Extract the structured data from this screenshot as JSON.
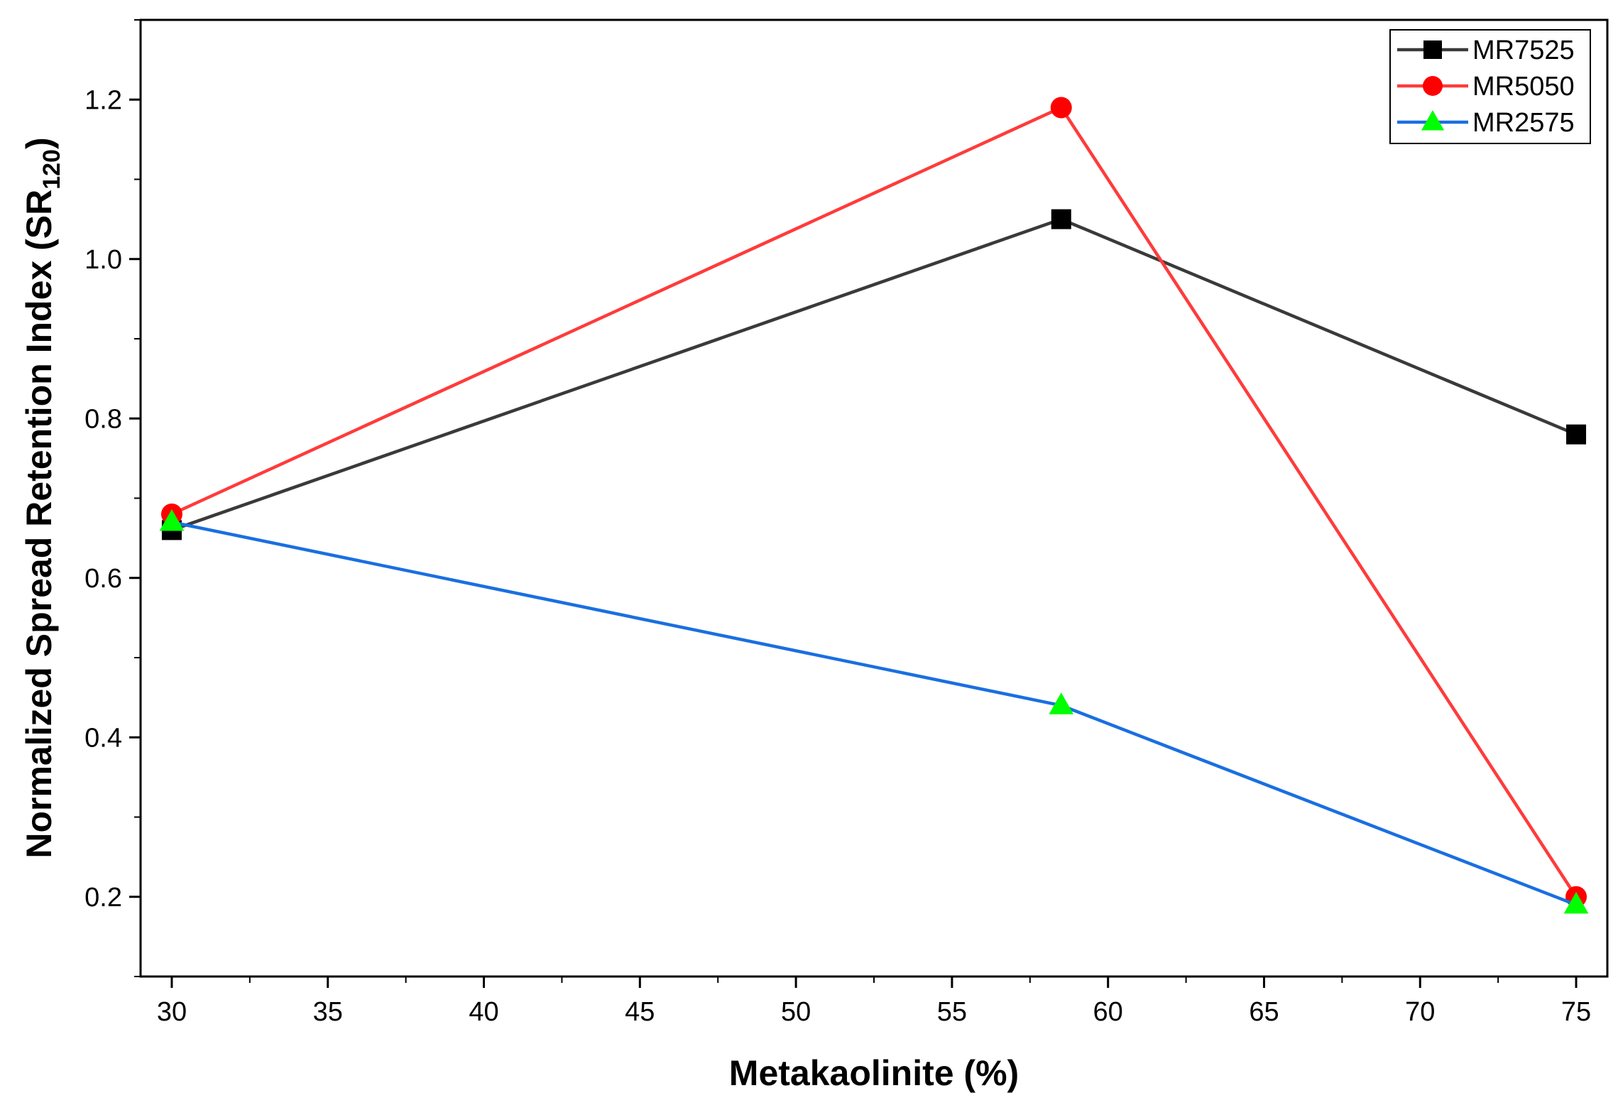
{
  "chart_data": {
    "type": "line",
    "title": "",
    "xlabel": "Metakaolinite (%)",
    "ylabel": {
      "main": "Normalized Spread Retention Index  (SR",
      "subscript": "120",
      "close": ")"
    },
    "xlim": [
      29,
      76
    ],
    "ylim": [
      0.1,
      1.3
    ],
    "xticks": [
      30,
      35,
      40,
      45,
      50,
      55,
      60,
      65,
      70,
      75
    ],
    "xtick_labels": [
      "30",
      "35",
      "40",
      "45",
      "50",
      "55",
      "60",
      "65",
      "70",
      "75"
    ],
    "yticks": [
      0.2,
      0.4,
      0.6,
      0.8,
      1.0,
      1.2
    ],
    "ytick_labels": [
      "0.2",
      "0.4",
      "0.6",
      "0.8",
      "1.0",
      "1.2"
    ],
    "grid": false,
    "legend_position": "top-right",
    "series": [
      {
        "name": "MR7525",
        "marker": "square",
        "line_color": "#3a3a3a",
        "marker_color": "#000000",
        "x": [
          30,
          58.5,
          75
        ],
        "y": [
          0.66,
          1.05,
          0.78
        ]
      },
      {
        "name": "MR5050",
        "marker": "circle",
        "line_color": "#ff3b3b",
        "marker_color": "#ff0000",
        "x": [
          30,
          58.5,
          75
        ],
        "y": [
          0.68,
          1.19,
          0.2
        ]
      },
      {
        "name": "MR2575",
        "marker": "triangle",
        "line_color": "#1a6fe0",
        "marker_color": "#00ff00",
        "x": [
          30,
          58.5,
          75
        ],
        "y": [
          0.67,
          0.44,
          0.19
        ]
      }
    ]
  }
}
